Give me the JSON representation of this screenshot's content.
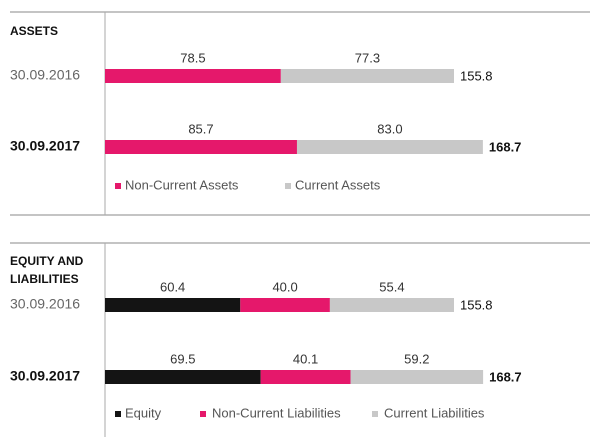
{
  "chart_data": [
    {
      "type": "stacked-bar-horizontal",
      "title": "ASSETS",
      "categories": [
        "30.09.2016",
        "30.09.2017"
      ],
      "series": [
        {
          "name": "Non-Current Assets",
          "color": "#e5186b",
          "values": [
            78.5,
            85.7
          ]
        },
        {
          "name": "Current Assets",
          "color": "#c8c8c8",
          "values": [
            77.3,
            83.0
          ],
          "value_labels": [
            "77.3",
            "83.0"
          ]
        }
      ],
      "totals": [
        155.8,
        168.7
      ]
    },
    {
      "type": "stacked-bar-horizontal",
      "title": "EQUITY AND LIABILITIES",
      "categories": [
        "30.09.2016",
        "30.09.2017"
      ],
      "series": [
        {
          "name": "Equity",
          "color": "#141414",
          "values": [
            60.4,
            69.5
          ]
        },
        {
          "name": "Non-Current Liabilities",
          "color": "#e5186b",
          "values": [
            40.0,
            40.1
          ],
          "value_labels": [
            "40.0",
            "40.1"
          ]
        },
        {
          "name": "Current Liabilities",
          "color": "#c8c8c8",
          "values": [
            55.4,
            59.2
          ]
        }
      ],
      "totals": [
        155.8,
        168.7
      ]
    }
  ]
}
